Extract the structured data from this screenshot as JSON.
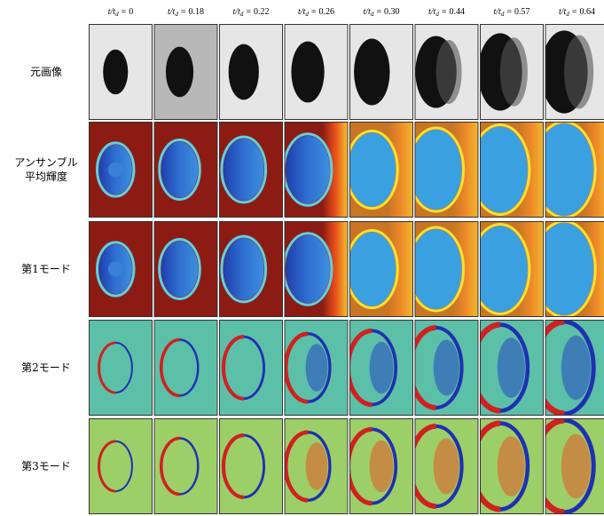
{
  "header": {
    "symbol": "t/t",
    "subscript": "d",
    "equals": "=",
    "values": [
      "0",
      "0.18",
      "0.22",
      "0.26",
      "0.30",
      "0.44",
      "0.57",
      "0.64"
    ]
  },
  "rows": [
    [
      "元画像"
    ],
    [
      "アンサンブル",
      "平均輝度"
    ],
    [
      "第1モード"
    ],
    [
      "第2モード"
    ],
    [
      "第3モード"
    ]
  ]
}
